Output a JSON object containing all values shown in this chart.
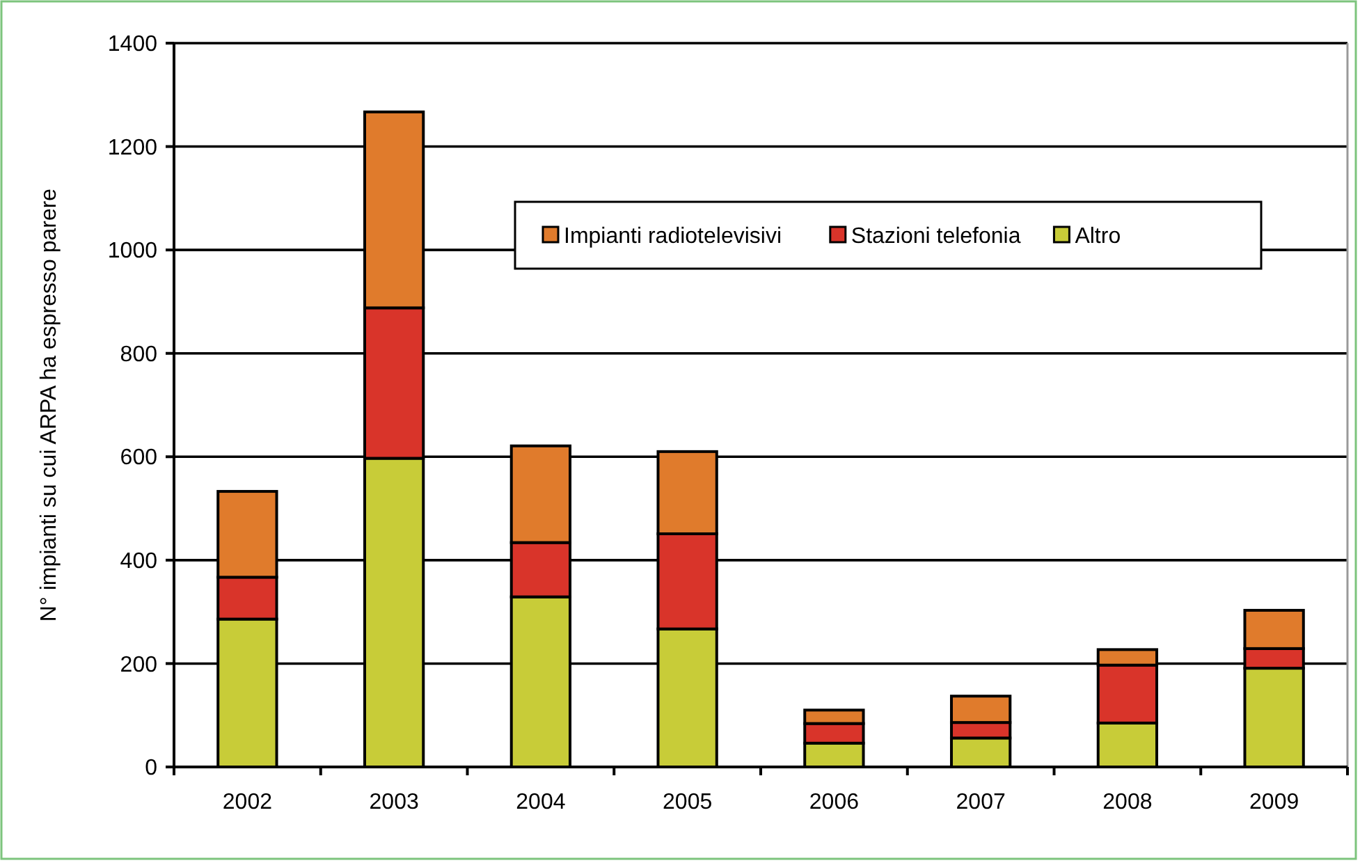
{
  "chart_data": {
    "type": "bar",
    "stacked": true,
    "ylabel": "N° impianti su cui ARPA ha espresso parere",
    "categories": [
      "2002",
      "2003",
      "2004",
      "2005",
      "2006",
      "2007",
      "2008",
      "2009"
    ],
    "series": [
      {
        "name": "Altro",
        "color": "#c8cc38",
        "values": [
          286,
          597,
          329,
          267,
          46,
          56,
          85,
          191
        ]
      },
      {
        "name": "Stazioni telefonia",
        "color": "#d9342a",
        "values": [
          81,
          291,
          105,
          184,
          38,
          30,
          112,
          38
        ]
      },
      {
        "name": "Impianti radiotelevisivi",
        "color": "#e07b2c",
        "values": [
          166,
          379,
          187,
          159,
          26,
          51,
          30,
          74
        ]
      }
    ],
    "ylim": [
      0,
      1400
    ],
    "yticks": [
      0,
      200,
      400,
      600,
      800,
      1000,
      1200,
      1400
    ],
    "grid": "y",
    "legend": "top right"
  }
}
